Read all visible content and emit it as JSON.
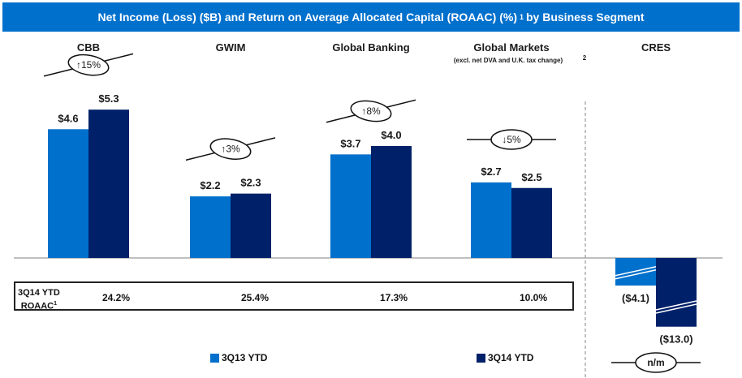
{
  "chart_data": {
    "type": "bar",
    "title": "Net Income (Loss) ($B) and Return on Average Allocated Capital (ROAAC) (%)",
    "title_footnote": "1",
    "title_suffix": "by Business Segment",
    "xlabel": "",
    "ylabel": "Net Income (Loss) ($B)",
    "ylim": [
      -13.0,
      5.3
    ],
    "grid": false,
    "legend_position": "bottom",
    "categories": [
      "CBB",
      "GWIM",
      "Global Banking",
      "Global Markets",
      "CRES"
    ],
    "category_subtitles": [
      "",
      "",
      "",
      "(excl. net DVA and U.K. tax change)",
      ""
    ],
    "category_footnotes": [
      "",
      "",
      "",
      "2",
      ""
    ],
    "series": [
      {
        "name": "3Q13 YTD",
        "color": "#0070cd",
        "values": [
          4.6,
          2.2,
          3.7,
          2.7,
          -4.1
        ],
        "labels": [
          "$4.6",
          "$2.2",
          "$3.7",
          "$2.7",
          "($4.1)"
        ]
      },
      {
        "name": "3Q14 YTD",
        "color": "#002169",
        "values": [
          5.3,
          2.3,
          4.0,
          2.5,
          -13.0
        ],
        "labels": [
          "$5.3",
          "$2.3",
          "$4.0",
          "$2.5",
          "($13.0)"
        ]
      }
    ],
    "changes": [
      {
        "direction": "up",
        "arrow": "↑",
        "text": "15%"
      },
      {
        "direction": "up",
        "arrow": "↑",
        "text": "3%"
      },
      {
        "direction": "up",
        "arrow": "↑",
        "text": "8%"
      },
      {
        "direction": "down",
        "arrow": "↓",
        "text": "5%"
      },
      {
        "direction": "none",
        "arrow": "",
        "text": "n/m"
      }
    ],
    "axis_break_on": "CRES",
    "roaac": {
      "label_line1": "3Q14 YTD",
      "label_line2": "ROAAC",
      "label_footnote": "1",
      "values": [
        "24.2%",
        "25.4%",
        "17.3%",
        "10.0%"
      ]
    }
  },
  "banner": {
    "title": "Net Income (Loss) ($B) and Return on Average Allocated Capital (ROAAC) (%)",
    "footnote": "1",
    "suffix": "by Business Segment"
  },
  "legend": {
    "items": [
      {
        "label": "3Q13 YTD",
        "color": "#0070cd"
      },
      {
        "label": "3Q14 YTD",
        "color": "#002169"
      }
    ]
  }
}
